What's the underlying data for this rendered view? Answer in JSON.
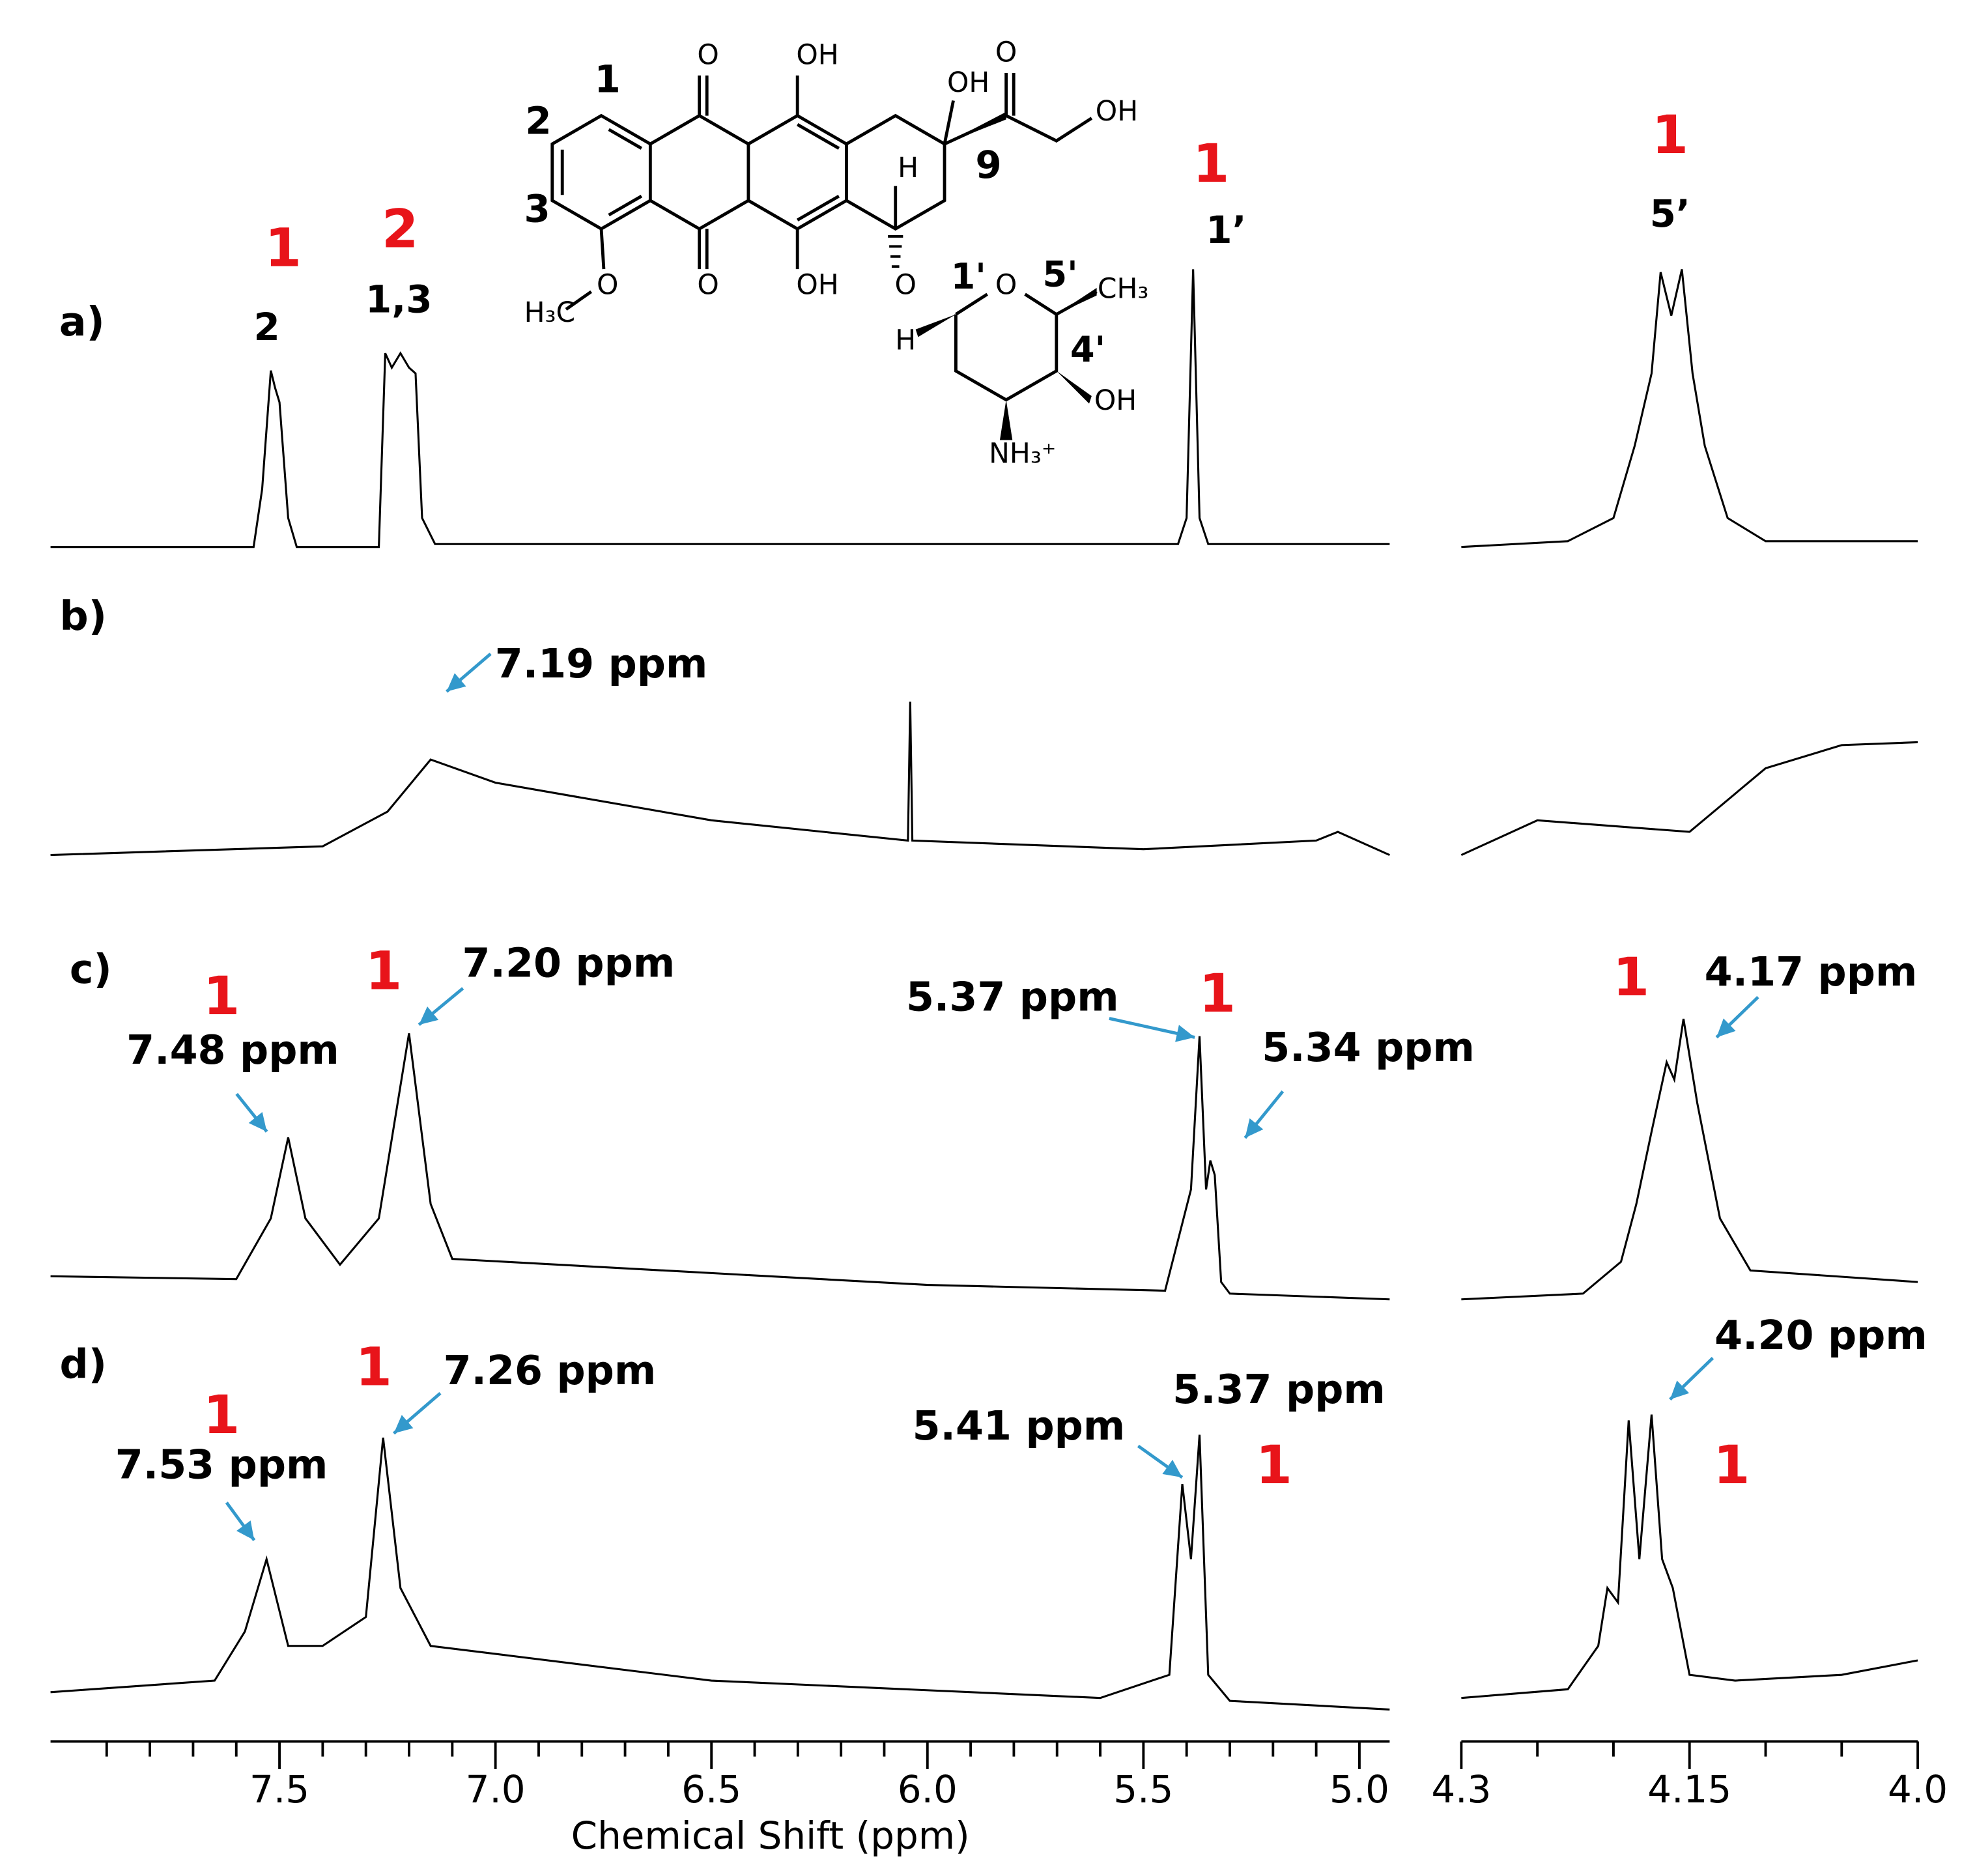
{
  "chart_data": [
    {
      "type": "line",
      "x_label": "Chemical Shift (ppm)",
      "xlim": [
        8.03,
        4.93
      ],
      "xticks": [
        7.5,
        {
          "value": 7,
          "label": "7.0"
        },
        6.5,
        {
          "value": 6,
          "label": "6.0"
        },
        5.5,
        {
          "value": 5,
          "label": "5.0"
        }
      ],
      "xminorticks": [
        7.9,
        7.8,
        7.7,
        7.6,
        7.4,
        7.3,
        7.2,
        7.1,
        6.9,
        6.8,
        6.7,
        6.6,
        6.4,
        6.3,
        6.2,
        6.1,
        5.9,
        5.8,
        5.7,
        5.6,
        5.4,
        5.3,
        5.2,
        5.1
      ],
      "series": [
        {
          "name": "a)",
          "color": "#000000",
          "x": [
            8.03,
            7.56,
            7.54,
            7.52,
            7.51,
            7.5,
            7.48,
            7.46,
            7.27,
            7.255,
            7.24,
            7.22,
            7.2,
            7.185,
            7.17,
            7.14,
            5.42,
            5.4,
            5.385,
            5.37,
            5.35,
            4.93
          ],
          "values": [
            0,
            0,
            0.2,
            0.61,
            0.55,
            0.5,
            0.1,
            0,
            0,
            0.67,
            0.62,
            0.67,
            0.62,
            0.6,
            0.1,
            0.01,
            0.01,
            0.1,
            0.96,
            0.1,
            0.01,
            0.01
          ]
        },
        {
          "name": "b)",
          "color": "#000000",
          "x": [
            8.03,
            7.4,
            7.25,
            7.15,
            7.0,
            6.5,
            6.045,
            6.04,
            6.035,
            5.5,
            5.1,
            5.05,
            4.93
          ],
          "values": [
            0,
            0.03,
            0.15,
            0.33,
            0.25,
            0.12,
            0.05,
            0.53,
            0.05,
            0.02,
            0.05,
            0.08,
            0
          ]
        },
        {
          "name": "c)",
          "color": "#000000",
          "x": [
            8.03,
            7.6,
            7.52,
            7.48,
            7.44,
            7.36,
            7.27,
            7.2,
            7.15,
            7.1,
            6.0,
            5.45,
            5.39,
            5.37,
            5.355,
            5.345,
            5.335,
            5.32,
            5.3,
            4.93
          ],
          "values": [
            0,
            -0.01,
            0.2,
            0.48,
            0.2,
            0.04,
            0.2,
            0.84,
            0.25,
            0.06,
            -0.03,
            -0.05,
            0.3,
            0.83,
            0.3,
            0.4,
            0.35,
            -0.02,
            -0.06,
            -0.08
          ]
        },
        {
          "name": "d)",
          "color": "#000000",
          "x": [
            8.03,
            7.65,
            7.58,
            7.53,
            7.48,
            7.4,
            7.3,
            7.26,
            7.22,
            7.15,
            6.5,
            5.6,
            5.44,
            5.41,
            5.39,
            5.37,
            5.35,
            5.3,
            4.93
          ],
          "values": [
            0.04,
            0.08,
            0.25,
            0.5,
            0.2,
            0.2,
            0.3,
            0.92,
            0.4,
            0.2,
            0.08,
            0.02,
            0.1,
            0.76,
            0.5,
            0.93,
            0.1,
            0.01,
            -0.02
          ]
        }
      ]
    },
    {
      "type": "line",
      "xlim": [
        4.3,
        4.0
      ],
      "xticks": [
        4.3,
        4.15,
        {
          "value": 4,
          "label": "4.0"
        }
      ],
      "xminorticks": [
        4.25,
        4.2,
        4.1,
        4.05
      ],
      "series": [
        {
          "color": "#000000",
          "x": [
            4.3,
            4.23,
            4.2,
            4.186,
            4.175,
            4.169,
            4.162,
            4.155,
            4.148,
            4.14,
            4.125,
            4.1,
            4.0
          ],
          "values": [
            0,
            0.02,
            0.1,
            0.35,
            0.6,
            0.95,
            0.8,
            0.96,
            0.6,
            0.35,
            0.1,
            0.02,
            0.02
          ]
        },
        {
          "color": "#000000",
          "x": [
            4.3,
            4.25,
            4.2,
            4.15,
            4.1,
            4.05,
            4.0
          ],
          "values": [
            0,
            0.12,
            0.1,
            0.08,
            0.3,
            0.38,
            0.39
          ]
        },
        {
          "color": "#000000",
          "x": [
            4.3,
            4.22,
            4.195,
            4.185,
            4.175,
            4.165,
            4.16,
            4.154,
            4.145,
            4.13,
            4.11,
            4.0
          ],
          "values": [
            -0.08,
            -0.06,
            0.05,
            0.25,
            0.5,
            0.74,
            0.68,
            0.89,
            0.6,
            0.2,
            0.02,
            -0.02
          ]
        },
        {
          "color": "#000000",
          "x": [
            4.3,
            4.23,
            4.21,
            4.204,
            4.197,
            4.19,
            4.183,
            4.175,
            4.168,
            4.161,
            4.15,
            4.12,
            4.05,
            4.0
          ],
          "values": [
            0.02,
            0.05,
            0.2,
            0.4,
            0.35,
            0.98,
            0.5,
            1.0,
            0.5,
            0.4,
            0.1,
            0.08,
            0.1,
            0.15
          ]
        }
      ]
    }
  ],
  "annotations": [
    "1",
    "2",
    "1",
    "1",
    "1",
    "1",
    "1",
    "1",
    "1",
    "1",
    "1",
    "1",
    "2",
    "1,3",
    "1’",
    "5’",
    "7.19 ppm",
    "7.20 ppm",
    "7.48 ppm",
    "5.37 ppm",
    "5.34 ppm",
    "4.17 ppm",
    "7.26 ppm",
    "7.53 ppm",
    "5.41 ppm",
    "5.37 ppm",
    "4.20 ppm"
  ],
  "structure": {
    "labels": [
      "1",
      "2",
      "3",
      "9",
      "O",
      "OH",
      "O",
      "OH",
      "H₃C",
      "O",
      "OH",
      "O",
      "OH",
      "O",
      "H",
      "O",
      "1'",
      "5'",
      "CH₃",
      "4'",
      "OH",
      "NH₃⁺",
      "H"
    ]
  }
}
